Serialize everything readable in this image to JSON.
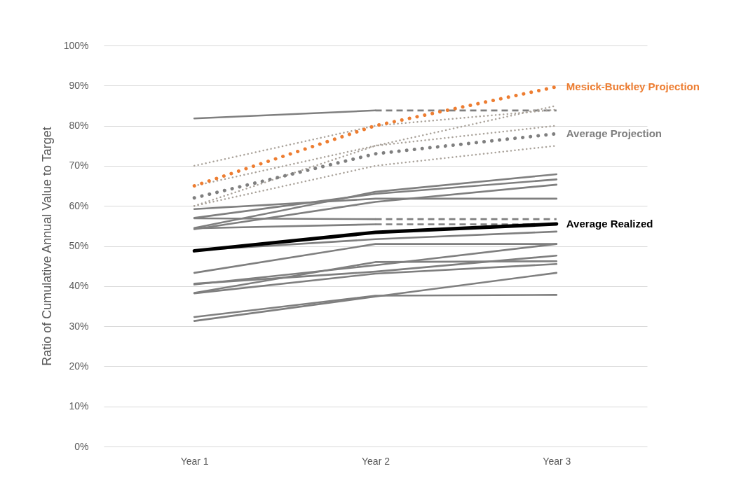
{
  "chart_data": {
    "type": "line",
    "ylabel": "Ratio of Cumulative Annual Value to Target",
    "categories": [
      "Year 1",
      "Year 2",
      "Year 3"
    ],
    "ylim": [
      0,
      100
    ],
    "yticks": [
      {
        "value": 0,
        "label": "0%"
      },
      {
        "value": 10,
        "label": "10%"
      },
      {
        "value": 20,
        "label": "20%"
      },
      {
        "value": 30,
        "label": "30%"
      },
      {
        "value": 40,
        "label": "40%"
      },
      {
        "value": 50,
        "label": "50%"
      },
      {
        "value": 60,
        "label": "60%"
      },
      {
        "value": 70,
        "label": "70%"
      },
      {
        "value": 80,
        "label": "80%"
      },
      {
        "value": 90,
        "label": "90%"
      },
      {
        "value": 100,
        "label": "100%"
      }
    ],
    "grid": "y",
    "marker": "none",
    "series": [
      {
        "color": "#7f7f7f",
        "line_style": "solid",
        "values": [
          81.8,
          83.8,
          null
        ]
      },
      {
        "color": "#7f7f7f",
        "line_style": "dashed",
        "values": [
          null,
          83.8,
          83.8
        ]
      },
      {
        "color": "#7f7f7f",
        "line_style": "solid",
        "values": [
          59.2,
          61.8,
          61.8
        ]
      },
      {
        "color": "#7f7f7f",
        "line_style": "solid",
        "values": [
          57.0,
          63.0,
          66.6
        ]
      },
      {
        "color": "#7f7f7f",
        "line_style": "solid",
        "values": [
          54.5,
          63.5,
          67.9
        ]
      },
      {
        "color": "#7f7f7f",
        "line_style": "solid",
        "values": [
          54.2,
          61.0,
          65.3
        ]
      },
      {
        "color": "#7f7f7f",
        "line_style": "solid",
        "values": [
          56.9,
          56.7,
          null
        ]
      },
      {
        "color": "#7f7f7f",
        "line_style": "dashed",
        "values": [
          null,
          56.7,
          56.7
        ]
      },
      {
        "color": "#7f7f7f",
        "line_style": "solid",
        "values": [
          54.4,
          55.4,
          null
        ]
      },
      {
        "color": "#7f7f7f",
        "line_style": "dashed",
        "values": [
          null,
          55.4,
          55.4
        ]
      },
      {
        "color": "#7f7f7f",
        "line_style": "solid",
        "values": [
          48.9,
          51.7,
          53.6
        ]
      },
      {
        "color": "#7f7f7f",
        "line_style": "solid",
        "values": [
          43.3,
          50.5,
          50.5
        ]
      },
      {
        "color": "#7f7f7f",
        "line_style": "solid",
        "values": [
          40.6,
          43.6,
          47.6
        ]
      },
      {
        "color": "#7f7f7f",
        "line_style": "solid",
        "values": [
          40.4,
          45.2,
          50.5
        ]
      },
      {
        "color": "#7f7f7f",
        "line_style": "solid",
        "values": [
          38.3,
          46.0,
          46.2
        ]
      },
      {
        "color": "#7f7f7f",
        "line_style": "solid",
        "values": [
          38.2,
          43.1,
          45.5
        ]
      },
      {
        "color": "#7f7f7f",
        "line_style": "solid",
        "values": [
          32.3,
          37.6,
          37.8
        ]
      },
      {
        "color": "#7f7f7f",
        "line_style": "solid",
        "values": [
          31.3,
          37.4,
          43.3
        ]
      },
      {
        "color": "#aaa39b",
        "line_style": "dotted",
        "values": [
          70,
          80,
          84
        ]
      },
      {
        "color": "#aaa39b",
        "line_style": "dotted",
        "values": [
          60,
          75,
          85
        ]
      },
      {
        "color": "#aaa39b",
        "line_style": "dotted",
        "values": [
          65,
          75,
          80
        ]
      },
      {
        "color": "#aaa39b",
        "line_style": "dotted",
        "values": [
          60,
          70,
          75
        ]
      },
      {
        "name": "Average Realized",
        "color": "#000000",
        "line_style": "solid",
        "values": [
          48.8,
          53.4,
          55.5
        ]
      },
      {
        "name": "Average Projection",
        "color": "#7f7f7f",
        "line_style": "dotted",
        "values": [
          62.0,
          73.0,
          78.0
        ]
      },
      {
        "name": "Mesick-Buckley Projection",
        "color": "#ed7d31",
        "line_style": "dotted",
        "values": [
          65.0,
          80.0,
          89.7
        ]
      }
    ]
  }
}
